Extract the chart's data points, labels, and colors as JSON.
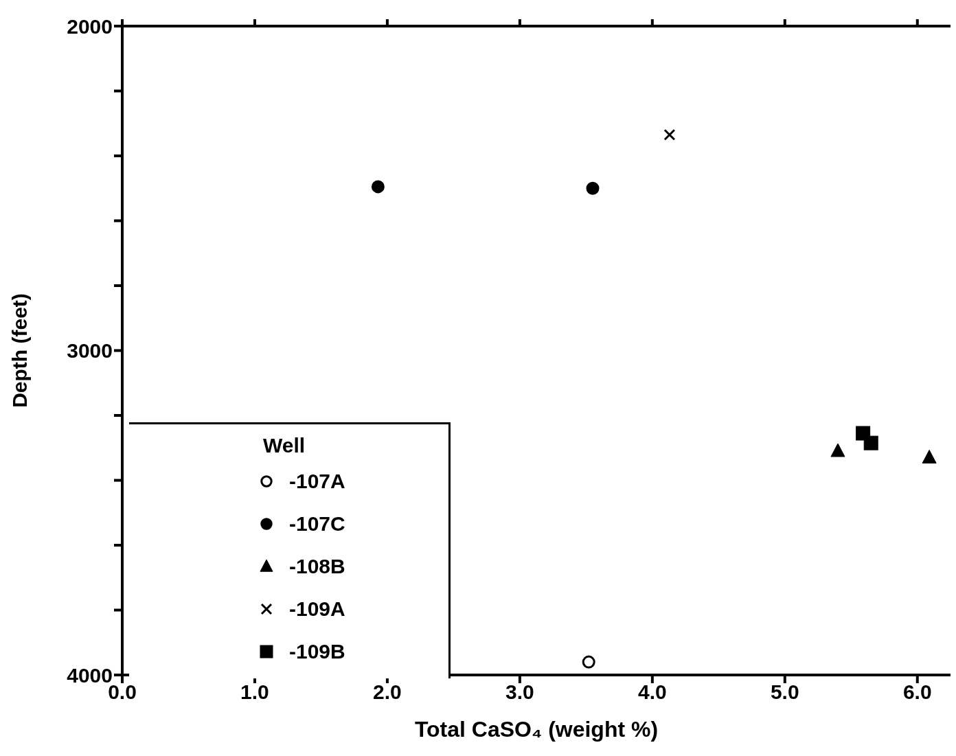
{
  "chart_data": {
    "type": "scatter",
    "xlabel": "Total CaSO₄  (weight %)",
    "ylabel": "Depth (feet)",
    "legend_title": "Well",
    "legend": "bottom left",
    "xlim": [
      0,
      6.25
    ],
    "xticks": [
      {
        "value": 0,
        "label": "0.0"
      },
      {
        "value": 1,
        "label": "1.0"
      },
      {
        "value": 2,
        "label": "2.0"
      },
      {
        "value": 3,
        "label": "3.0"
      },
      {
        "value": 4,
        "label": "4.0"
      },
      {
        "value": 5,
        "label": "5.0"
      },
      {
        "value": 6,
        "label": "6.0"
      }
    ],
    "ylim": [
      4000,
      2000
    ],
    "yticks": [
      2000,
      {
        "value": 2200,
        "label": null
      },
      {
        "value": 2400,
        "label": null
      },
      {
        "value": 2600,
        "label": null
      },
      {
        "value": 2800,
        "label": null
      },
      3000,
      {
        "value": 3200,
        "label": null
      },
      {
        "value": 3400,
        "label": null
      },
      {
        "value": 3600,
        "label": null
      },
      {
        "value": 3800,
        "label": null
      },
      4000
    ],
    "series": [
      {
        "name": "-107A",
        "color": "#ffffff",
        "marker": "circle",
        "x": [
          3.52
        ],
        "values": [
          3960
        ]
      },
      {
        "name": "-107C",
        "color": "#000000",
        "marker": "circle",
        "x": [
          1.93,
          3.55
        ],
        "values": [
          2495,
          2500
        ]
      },
      {
        "name": "-108B",
        "color": "#000000",
        "marker": "triangle",
        "x": [
          5.4,
          6.09
        ],
        "values": [
          3310,
          3330
        ]
      },
      {
        "name": "-109A",
        "color": "#000000",
        "marker": "cross",
        "x": [
          4.13
        ],
        "values": [
          2335
        ]
      },
      {
        "name": "-109B",
        "color": "#000000",
        "marker": "square",
        "x": [
          5.59,
          5.65
        ],
        "values": [
          3255,
          3285
        ]
      }
    ]
  }
}
